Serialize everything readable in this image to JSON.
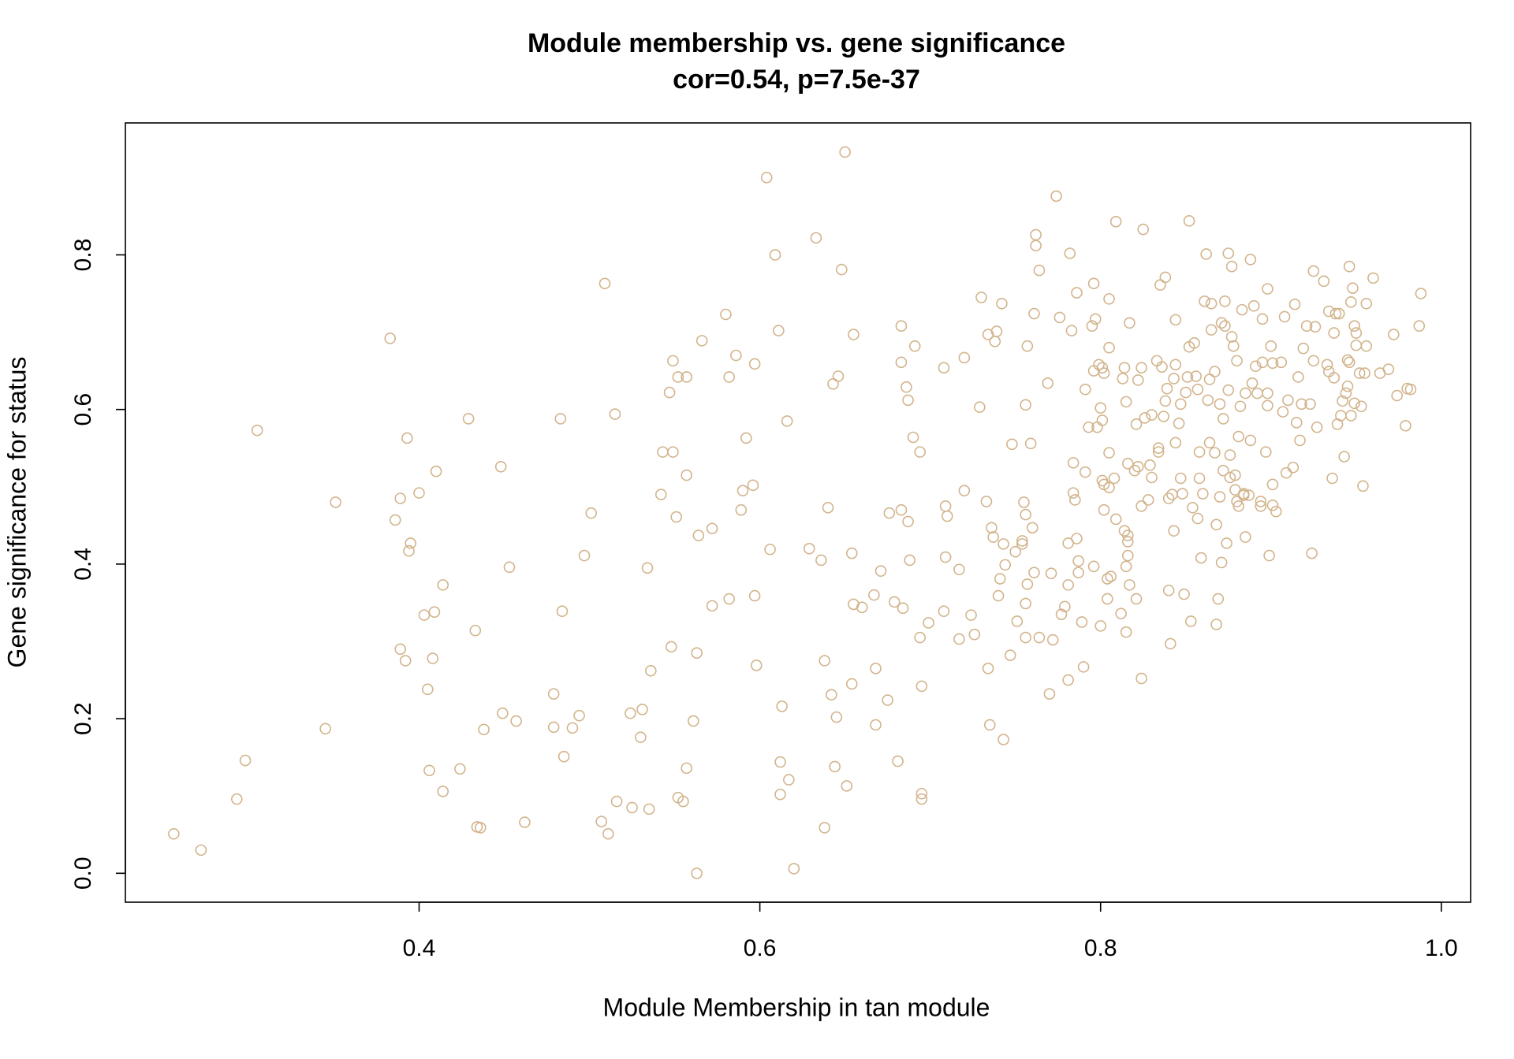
{
  "chart_data": {
    "type": "scatter",
    "title": "Module membership vs. gene significance",
    "subtitle": "cor=0.54, p=7.5e-37",
    "x_label": "Module Membership in tan module",
    "y_label": "Gene significance for status",
    "color": "#d2b48c",
    "xlim": [
      0.2276,
      1.0172
    ],
    "ylim": [
      -0.0374,
      0.9707
    ],
    "xticks": [
      0.4,
      0.6,
      0.8,
      {
        "value": 1,
        "label": "1.0"
      }
    ],
    "yticks": [
      {
        "value": 0,
        "label": "0.0"
      },
      0.2,
      0.4,
      0.6,
      0.8
    ],
    "x": [
      0.256,
      0.272,
      0.293,
      0.298,
      0.305,
      0.345,
      0.351,
      0.386,
      0.389,
      0.383,
      0.393,
      0.395,
      0.394,
      0.4,
      0.41,
      0.414,
      0.403,
      0.409,
      0.389,
      0.392,
      0.408,
      0.405,
      0.406,
      0.414,
      0.424,
      0.429,
      0.433,
      0.434,
      0.436,
      0.438,
      0.448,
      0.449,
      0.453,
      0.457,
      0.462,
      0.479,
      0.479,
      0.483,
      0.484,
      0.485,
      0.49,
      0.494,
      0.497,
      0.501,
      0.507,
      0.509,
      0.511,
      0.515,
      0.516,
      0.524,
      0.525,
      0.53,
      0.531,
      0.534,
      0.535,
      0.536,
      0.542,
      0.543,
      0.547,
      0.548,
      0.549,
      0.549,
      0.551,
      0.552,
      0.552,
      0.555,
      0.557,
      0.557,
      0.557,
      0.561,
      0.563,
      0.563,
      0.564,
      0.566,
      0.572,
      0.572,
      0.58,
      0.582,
      0.582,
      0.586,
      0.589,
      0.59,
      0.592,
      0.596,
      0.597,
      0.597,
      0.598,
      0.604,
      0.606,
      0.609,
      0.611,
      0.612,
      0.612,
      0.613,
      0.616,
      0.617,
      0.62,
      0.629,
      0.633,
      0.636,
      0.638,
      0.638,
      0.64,
      0.642,
      0.643,
      0.644,
      0.645,
      0.646,
      0.648,
      0.65,
      0.651,
      0.654,
      0.654,
      0.655,
      0.655,
      0.66,
      0.667,
      0.668,
      0.668,
      0.671,
      0.675,
      0.676,
      0.679,
      0.681,
      0.683,
      0.683,
      0.683,
      0.684,
      0.686,
      0.687,
      0.687,
      0.688,
      0.69,
      0.691,
      0.694,
      0.694,
      0.695,
      0.695,
      0.695,
      0.699,
      0.708,
      0.708,
      0.709,
      0.71,
      0.709,
      0.717,
      0.717,
      0.72,
      0.72,
      0.724,
      0.726,
      0.729,
      0.73,
      0.734,
      0.733,
      0.734,
      0.735,
      0.736,
      0.737,
      0.738,
      0.739,
      0.74,
      0.741,
      0.742,
      0.743,
      0.743,
      0.744,
      0.747,
      0.748,
      0.75,
      0.751,
      0.754,
      0.754,
      0.755,
      0.756,
      0.756,
      0.756,
      0.757,
      0.757,
      0.756,
      0.759,
      0.76,
      0.761,
      0.761,
      0.762,
      0.762,
      0.764,
      0.764,
      0.769,
      0.77,
      0.771,
      0.772,
      0.774,
      0.776,
      0.777,
      0.779,
      0.781,
      0.781,
      0.781,
      0.782,
      0.783,
      0.784,
      0.784,
      0.785,
      0.786,
      0.786,
      0.787,
      0.787,
      0.789,
      0.79,
      0.791,
      0.791,
      0.793,
      0.795,
      0.796,
      0.796,
      0.796,
      0.797,
      0.798,
      0.799,
      0.8,
      0.8,
      0.801,
      0.801,
      0.801,
      0.802,
      0.802,
      0.802,
      0.804,
      0.804,
      0.805,
      0.805,
      0.805,
      0.805,
      0.806,
      0.808,
      0.809,
      0.809,
      0.812,
      0.813,
      0.814,
      0.814,
      0.815,
      0.815,
      0.815,
      0.816,
      0.816,
      0.816,
      0.816,
      0.817,
      0.817,
      0.82,
      0.821,
      0.821,
      0.822,
      0.822,
      0.824,
      0.824,
      0.825,
      0.824,
      0.826,
      0.828,
      0.829,
      0.83,
      0.83,
      0.833,
      0.834,
      0.834,
      0.835,
      0.836,
      0.837,
      0.838,
      0.838,
      0.839,
      0.84,
      0.84,
      0.841,
      0.842,
      0.843,
      0.843,
      0.844,
      0.844,
      0.844,
      0.846,
      0.847,
      0.847,
      0.848,
      0.849,
      0.85,
      0.851,
      0.852,
      0.852,
      0.853,
      0.854,
      0.855,
      0.856,
      0.857,
      0.857,
      0.858,
      0.858,
      0.859,
      0.86,
      0.861,
      0.862,
      0.863,
      0.864,
      0.864,
      0.865,
      0.865,
      0.867,
      0.867,
      0.868,
      0.868,
      0.869,
      0.87,
      0.87,
      0.871,
      0.871,
      0.872,
      0.872,
      0.873,
      0.873,
      0.874,
      0.875,
      0.875,
      0.876,
      0.876,
      0.877,
      0.877,
      0.878,
      0.879,
      0.879,
      0.88,
      0.88,
      0.881,
      0.881,
      0.882,
      0.883,
      0.884,
      0.884,
      0.885,
      0.885,
      0.887,
      0.888,
      0.888,
      0.889,
      0.89,
      0.891,
      0.892,
      0.894,
      0.894,
      0.895,
      0.895,
      0.897,
      0.898,
      0.898,
      0.898,
      0.899,
      0.9,
      0.901,
      0.901,
      0.901,
      0.903,
      0.906,
      0.907,
      0.908,
      0.909,
      0.91,
      0.913,
      0.914,
      0.915,
      0.916,
      0.917,
      0.918,
      0.919,
      0.921,
      0.923,
      0.924,
      0.925,
      0.925,
      0.926,
      0.927,
      0.931,
      0.933,
      0.934,
      0.934,
      0.936,
      0.937,
      0.937,
      0.938,
      0.939,
      0.94,
      0.941,
      0.942,
      0.943,
      0.944,
      0.945,
      0.945,
      0.946,
      0.946,
      0.947,
      0.947,
      0.948,
      0.949,
      0.949,
      0.95,
      0.95,
      0.952,
      0.953,
      0.954,
      0.955,
      0.956,
      0.956,
      0.96,
      0.964,
      0.969,
      0.972,
      0.974,
      0.979,
      0.98,
      0.982,
      0.987,
      0.988
    ],
    "values": [
      0.051,
      0.03,
      0.096,
      0.146,
      0.573,
      0.187,
      0.48,
      0.457,
      0.485,
      0.692,
      0.563,
      0.427,
      0.417,
      0.492,
      0.52,
      0.373,
      0.334,
      0.338,
      0.29,
      0.275,
      0.278,
      0.238,
      0.133,
      0.106,
      0.135,
      0.588,
      0.314,
      0.06,
      0.059,
      0.186,
      0.526,
      0.207,
      0.396,
      0.197,
      0.066,
      0.232,
      0.189,
      0.588,
      0.339,
      0.151,
      0.188,
      0.204,
      0.411,
      0.466,
      0.067,
      0.763,
      0.051,
      0.594,
      0.093,
      0.207,
      0.085,
      0.176,
      0.212,
      0.395,
      0.083,
      0.262,
      0.49,
      0.545,
      0.622,
      0.293,
      0.663,
      0.545,
      0.461,
      0.642,
      0.098,
      0.093,
      0.136,
      0.642,
      0.515,
      0.197,
      0.285,
      0.0,
      0.437,
      0.689,
      0.446,
      0.346,
      0.723,
      0.642,
      0.355,
      0.67,
      0.47,
      0.495,
      0.563,
      0.502,
      0.659,
      0.359,
      0.269,
      0.9,
      0.419,
      0.8,
      0.702,
      0.144,
      0.102,
      0.216,
      0.585,
      0.121,
      0.006,
      0.42,
      0.822,
      0.405,
      0.059,
      0.275,
      0.473,
      0.231,
      0.633,
      0.138,
      0.202,
      0.643,
      0.781,
      0.933,
      0.113,
      0.414,
      0.245,
      0.348,
      0.697,
      0.344,
      0.36,
      0.192,
      0.265,
      0.391,
      0.224,
      0.466,
      0.351,
      0.145,
      0.708,
      0.47,
      0.661,
      0.343,
      0.629,
      0.455,
      0.612,
      0.405,
      0.564,
      0.682,
      0.545,
      0.305,
      0.103,
      0.096,
      0.242,
      0.324,
      0.339,
      0.654,
      0.475,
      0.462,
      0.409,
      0.393,
      0.303,
      0.495,
      0.667,
      0.334,
      0.309,
      0.603,
      0.745,
      0.265,
      0.481,
      0.697,
      0.192,
      0.447,
      0.435,
      0.688,
      0.701,
      0.359,
      0.381,
      0.737,
      0.173,
      0.426,
      0.399,
      0.282,
      0.555,
      0.416,
      0.326,
      0.426,
      0.43,
      0.48,
      0.464,
      0.349,
      0.606,
      0.682,
      0.374,
      0.305,
      0.556,
      0.447,
      0.724,
      0.389,
      0.826,
      0.812,
      0.78,
      0.305,
      0.634,
      0.232,
      0.388,
      0.302,
      0.876,
      0.719,
      0.335,
      0.345,
      0.427,
      0.373,
      0.25,
      0.802,
      0.702,
      0.531,
      0.492,
      0.483,
      0.751,
      0.433,
      0.404,
      0.389,
      0.325,
      0.267,
      0.626,
      0.519,
      0.577,
      0.708,
      0.763,
      0.65,
      0.397,
      0.717,
      0.577,
      0.658,
      0.32,
      0.602,
      0.508,
      0.586,
      0.654,
      0.47,
      0.647,
      0.503,
      0.355,
      0.381,
      0.743,
      0.499,
      0.544,
      0.68,
      0.384,
      0.511,
      0.843,
      0.458,
      0.336,
      0.64,
      0.654,
      0.443,
      0.61,
      0.312,
      0.397,
      0.53,
      0.437,
      0.429,
      0.411,
      0.712,
      0.373,
      0.521,
      0.355,
      0.581,
      0.638,
      0.526,
      0.252,
      0.654,
      0.833,
      0.475,
      0.589,
      0.483,
      0.528,
      0.512,
      0.593,
      0.663,
      0.545,
      0.55,
      0.761,
      0.655,
      0.591,
      0.611,
      0.771,
      0.627,
      0.485,
      0.366,
      0.297,
      0.49,
      0.64,
      0.443,
      0.557,
      0.716,
      0.658,
      0.582,
      0.511,
      0.607,
      0.491,
      0.361,
      0.622,
      0.642,
      0.681,
      0.844,
      0.326,
      0.473,
      0.686,
      0.643,
      0.626,
      0.459,
      0.511,
      0.545,
      0.408,
      0.491,
      0.74,
      0.801,
      0.612,
      0.557,
      0.639,
      0.737,
      0.703,
      0.544,
      0.649,
      0.451,
      0.322,
      0.355,
      0.607,
      0.487,
      0.402,
      0.712,
      0.521,
      0.588,
      0.74,
      0.708,
      0.427,
      0.802,
      0.625,
      0.512,
      0.541,
      0.785,
      0.694,
      0.682,
      0.496,
      0.515,
      0.663,
      0.481,
      0.565,
      0.475,
      0.604,
      0.729,
      0.491,
      0.489,
      0.621,
      0.435,
      0.489,
      0.794,
      0.56,
      0.634,
      0.734,
      0.656,
      0.621,
      0.481,
      0.475,
      0.717,
      0.661,
      0.545,
      0.756,
      0.605,
      0.621,
      0.411,
      0.682,
      0.503,
      0.476,
      0.66,
      0.468,
      0.661,
      0.597,
      0.72,
      0.518,
      0.612,
      0.525,
      0.736,
      0.583,
      0.642,
      0.56,
      0.607,
      0.679,
      0.708,
      0.607,
      0.414,
      0.663,
      0.779,
      0.707,
      0.577,
      0.766,
      0.658,
      0.727,
      0.649,
      0.511,
      0.699,
      0.641,
      0.724,
      0.581,
      0.724,
      0.592,
      0.611,
      0.539,
      0.621,
      0.664,
      0.63,
      0.785,
      0.661,
      0.739,
      0.592,
      0.757,
      0.708,
      0.608,
      0.683,
      0.699,
      0.647,
      0.604,
      0.501,
      0.647,
      0.682,
      0.737,
      0.77,
      0.647,
      0.652,
      0.697,
      0.618,
      0.579,
      0.627,
      0.626,
      0.708,
      0.75
    ]
  }
}
